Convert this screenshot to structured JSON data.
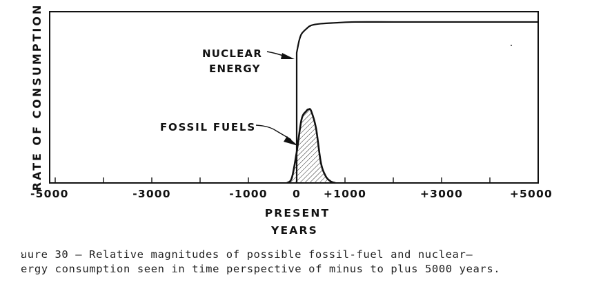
{
  "chart_data": {
    "type": "line",
    "title": "",
    "ylabel": "RATE OF CONSUMPTION",
    "xlabel_lines": [
      "PRESENT",
      "YEARS"
    ],
    "xlim": [
      -5000,
      5000
    ],
    "tick_values": [
      -5000,
      -4000,
      -3000,
      -2000,
      -1000,
      0,
      1000,
      2000,
      3000,
      4000,
      5000
    ],
    "tick_labels": [
      "-5000",
      "-3000",
      "-1000",
      "0",
      "+1000",
      "+3000",
      "+5000"
    ],
    "tick_label_values": [
      -5000,
      -3000,
      -1000,
      0,
      1000,
      3000,
      5000
    ],
    "grid": false,
    "series": [
      {
        "name": "NUCLEAR ENERGY",
        "x": [
          0,
          0,
          50,
          100,
          200,
          300,
          500,
          800,
          1200,
          2000,
          3000,
          5000
        ],
        "y": [
          0,
          0.76,
          0.83,
          0.87,
          0.9,
          0.92,
          0.93,
          0.935,
          0.94,
          0.94,
          0.94,
          0.94
        ]
      },
      {
        "name": "FOSSIL FUELS",
        "x": [
          -200,
          -100,
          0,
          100,
          200,
          250,
          300,
          400,
          500,
          600,
          700,
          800
        ],
        "y": [
          0,
          0.03,
          0.18,
          0.37,
          0.42,
          0.43,
          0.42,
          0.32,
          0.12,
          0.04,
          0.01,
          0
        ],
        "fill": "hatched"
      }
    ],
    "annotations": [
      {
        "text": "NUCLEAR",
        "points_to": "NUCLEAR ENERGY"
      },
      {
        "text": "ENERGY",
        "points_to": "NUCLEAR ENERGY"
      },
      {
        "text": "FOSSIL FUELS",
        "points_to": "FOSSIL FUELS"
      }
    ],
    "caption": [
      "ꞟure 30 – Relative magnitudes of possible fossil-fuel and nuclear–",
      "ergy consumption seen in time perspective of minus to plus 5000 years."
    ]
  }
}
